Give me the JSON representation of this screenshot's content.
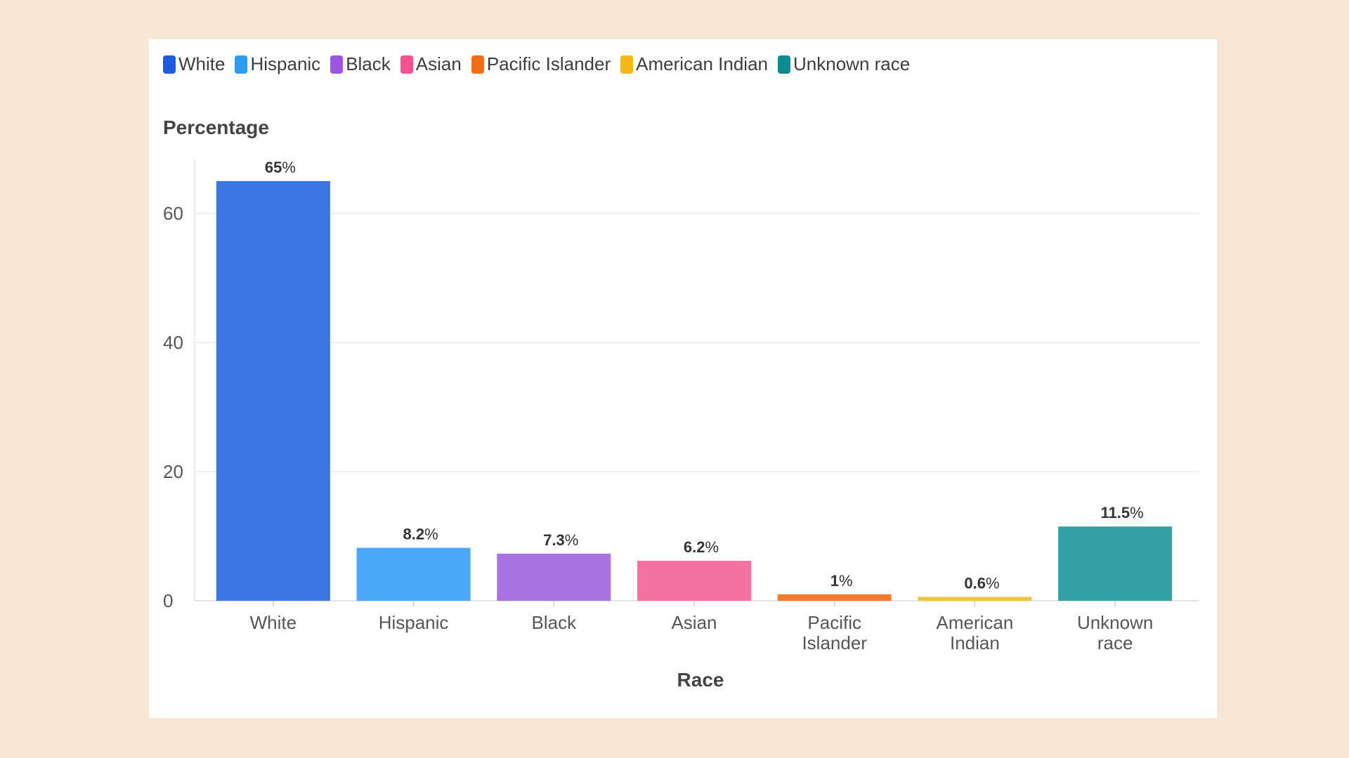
{
  "chart_data": {
    "type": "bar",
    "title": "",
    "ylabel": "Percentage",
    "xlabel": "Race",
    "ylim": [
      0,
      68
    ],
    "yticks": [
      0,
      20,
      40,
      60
    ],
    "grid": true,
    "legend_position": "top-left",
    "value_suffix": "%",
    "categories": [
      "White",
      "Hispanic",
      "Black",
      "Asian",
      "Pacific Islander",
      "American Indian",
      "Unknown race"
    ],
    "category_lines": [
      [
        "White"
      ],
      [
        "Hispanic"
      ],
      [
        "Black"
      ],
      [
        "Asian"
      ],
      [
        "Pacific",
        "Islander"
      ],
      [
        "American",
        "Indian"
      ],
      [
        "Unknown",
        "race"
      ]
    ],
    "values": [
      65,
      8.2,
      7.3,
      6.2,
      1,
      0.6,
      11.5
    ],
    "value_labels": [
      "65",
      "8.2",
      "7.3",
      "6.2",
      "1",
      "0.6",
      "11.5"
    ],
    "legend": [
      {
        "name": "White",
        "color": "#1f5be0"
      },
      {
        "name": "Hispanic",
        "color": "#2d9cf5"
      },
      {
        "name": "Black",
        "color": "#9b55e0"
      },
      {
        "name": "Asian",
        "color": "#f25390"
      },
      {
        "name": "Pacific Islander",
        "color": "#f26e14"
      },
      {
        "name": "American Indian",
        "color": "#f5b915"
      },
      {
        "name": "Unknown race",
        "color": "#0e8b8f"
      }
    ],
    "bar_colors": [
      "#3b76e3",
      "#4aa8f8",
      "#a873e0",
      "#f472a2",
      "#f27a2c",
      "#f3c33c",
      "#33a0a6"
    ]
  }
}
